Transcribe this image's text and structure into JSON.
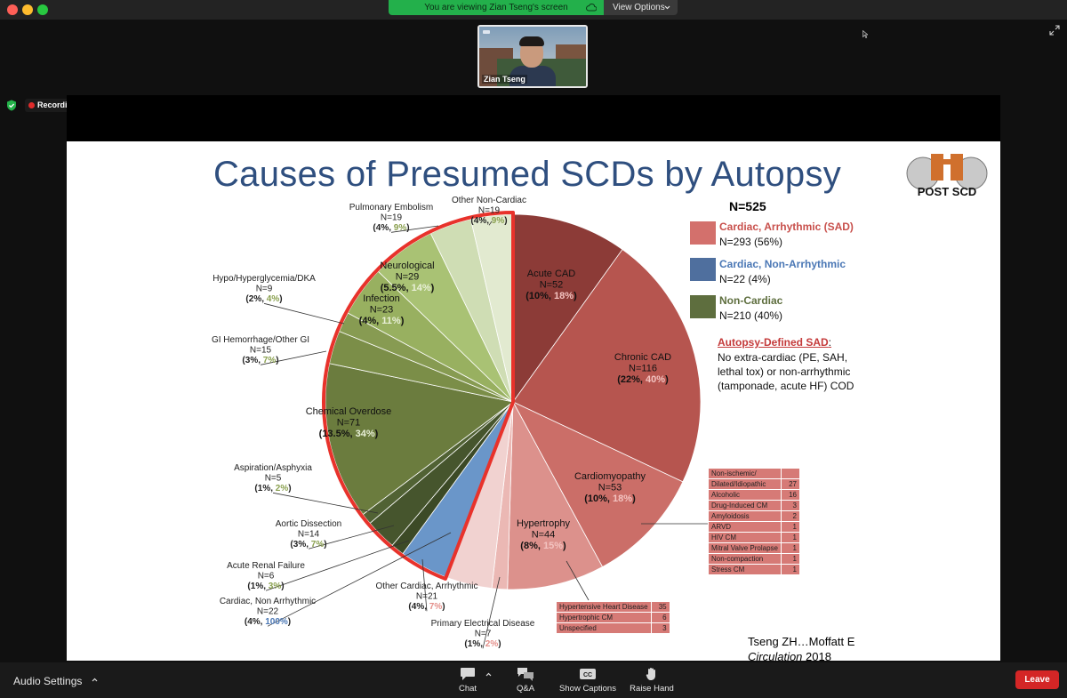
{
  "banner": {
    "viewing_text": "You are viewing Zian Tseng's screen",
    "view_options_label": "View Options"
  },
  "participant": {
    "name": "Zian Tseng"
  },
  "recording": {
    "label": "Recording"
  },
  "slide": {
    "title": "Causes of Presumed SCDs by Autopsy",
    "logo_text": "POST SCD",
    "total": "N=525",
    "legend": [
      {
        "title": "Cardiac, Arrhythmic (SAD)",
        "count": "N=293 (56%)",
        "color": "#d3706c",
        "title_color": "#c8504c"
      },
      {
        "title": "Cardiac, Non-Arrhythmic",
        "count": "N=22 (4%)",
        "color": "#4f6f9e",
        "title_color": "#4a77b5"
      },
      {
        "title": "Non-Cardiac",
        "count": "N=210 (40%)",
        "color": "#5e6e3e",
        "title_color": "#5e6e3e"
      }
    ],
    "sad_definition": {
      "title": "Autopsy-Defined SAD",
      "colon": ":",
      "text": "No extra-cardiac (PE, SAH, lethal tox) or non-arrhythmic (tamponade, acute HF) COD"
    },
    "citation": {
      "line1": "Tseng ZH…Moffatt E",
      "journal": "Circulation",
      "year": " 2018"
    },
    "cardiomyopathy_table": [
      {
        "label": "Non-ischemic/",
        "value": ""
      },
      {
        "label": "Dilated/Idiopathic",
        "value": "27"
      },
      {
        "label": "Alcoholic",
        "value": "16"
      },
      {
        "label": "Drug-Induced CM",
        "value": "3"
      },
      {
        "label": "Amyloidosis",
        "value": "2"
      },
      {
        "label": "ARVD",
        "value": "1"
      },
      {
        "label": "HIV CM",
        "value": "1"
      },
      {
        "label": "Mitral Valve Prolapse",
        "value": "1"
      },
      {
        "label": "Non-compaction",
        "value": "1"
      },
      {
        "label": "Stress CM",
        "value": "1"
      }
    ],
    "hypertrophy_table": [
      {
        "label": "Hypertensive Heart Disease",
        "value": "35"
      },
      {
        "label": "Hypertrophic CM",
        "value": "6"
      },
      {
        "label": "Unspecified",
        "value": "3"
      }
    ]
  },
  "chart_data": {
    "type": "pie",
    "title": "Causes of Presumed SCDs by Autopsy",
    "total": 525,
    "slices": [
      {
        "name": "Acute CAD",
        "n": "N=52",
        "pct": "10%",
        "pct2": "18%",
        "value": 52,
        "color": "#8c3b37",
        "group": "Cardiac, Arrhythmic"
      },
      {
        "name": "Chronic CAD",
        "n": "N=116",
        "pct": "22%",
        "pct2": "40%",
        "value": 116,
        "color": "#b6554f",
        "group": "Cardiac, Arrhythmic"
      },
      {
        "name": "Cardiomyopathy",
        "n": "N=53",
        "pct": "10%",
        "pct2": "18%",
        "value": 53,
        "color": "#cb6e68",
        "group": "Cardiac, Arrhythmic"
      },
      {
        "name": "Hypertrophy",
        "n": "N=44",
        "pct": "8%",
        "pct2": "15%",
        "value": 44,
        "color": "#dc918c",
        "group": "Cardiac, Arrhythmic"
      },
      {
        "name": "Primary Electrical Disease",
        "n": "N=7",
        "pct": "1%",
        "pct2": "2%",
        "value": 7,
        "color": "#ebb8b4",
        "group": "Cardiac, Arrhythmic"
      },
      {
        "name": "Other Cardiac, Arrhythmic",
        "n": "N=21",
        "pct": "4%",
        "pct2": "7%",
        "value": 21,
        "color": "#f1d2d0",
        "group": "Cardiac, Arrhythmic"
      },
      {
        "name": "Cardiac, Non Arrhythmic",
        "n": "N=22",
        "pct": "4%",
        "pct2": "100%",
        "value": 22,
        "color": "#6a96c9",
        "group": "Cardiac, Non-Arrhythmic"
      },
      {
        "name": "Acute Renal Failure",
        "n": "N=6",
        "pct": "1%",
        "pct2": "3%",
        "value": 6,
        "color": "#3c4a26",
        "group": "Non-Cardiac"
      },
      {
        "name": "Aortic Dissection",
        "n": "N=14",
        "pct": "3%",
        "pct2": "7%",
        "value": 14,
        "color": "#46552d",
        "group": "Non-Cardiac"
      },
      {
        "name": "Aspiration/Asphyxia",
        "n": "N=5",
        "pct": "1%",
        "pct2": "2%",
        "value": 5,
        "color": "#516234",
        "group": "Non-Cardiac"
      },
      {
        "name": "Chemical Overdose",
        "n": "N=71",
        "pct": "13.5%",
        "pct2": "34%",
        "value": 71,
        "color": "#6b7c3e",
        "group": "Non-Cardiac"
      },
      {
        "name": "GI Hemorrhage/Other GI",
        "n": "N=15",
        "pct": "3%",
        "pct2": "7%",
        "value": 15,
        "color": "#7b8e48",
        "group": "Non-Cardiac"
      },
      {
        "name": "Hypo/Hyperglycemia/DKA",
        "n": "N=9",
        "pct": "2%",
        "pct2": "4%",
        "value": 9,
        "color": "#879b52",
        "group": "Non-Cardiac"
      },
      {
        "name": "Infection",
        "n": "N=23",
        "pct": "4%",
        "pct2": "11%",
        "value": 23,
        "color": "#98b060",
        "group": "Non-Cardiac"
      },
      {
        "name": "Neurological",
        "n": "N=29",
        "pct": "5.5%",
        "pct2": "14%",
        "value": 29,
        "color": "#a9c274",
        "group": "Non-Cardiac"
      },
      {
        "name": "Pulmonary Embolism",
        "n": "N=19",
        "pct": "4%",
        "pct2": "9%",
        "value": 19,
        "color": "#cfddb4",
        "group": "Non-Cardiac"
      },
      {
        "name": "Other Non-Cardiac",
        "n": "N=19",
        "pct": "4%",
        "pct2": "9%",
        "value": 19,
        "color": "#e2ead0",
        "group": "Non-Cardiac"
      }
    ]
  },
  "bottombar": {
    "audio_label": "Audio Settings",
    "chat_label": "Chat",
    "qa_label": "Q&A",
    "captions_label": "Show Captions",
    "captions_badge": "CC",
    "raise_hand_label": "Raise Hand",
    "leave_label": "Leave"
  }
}
